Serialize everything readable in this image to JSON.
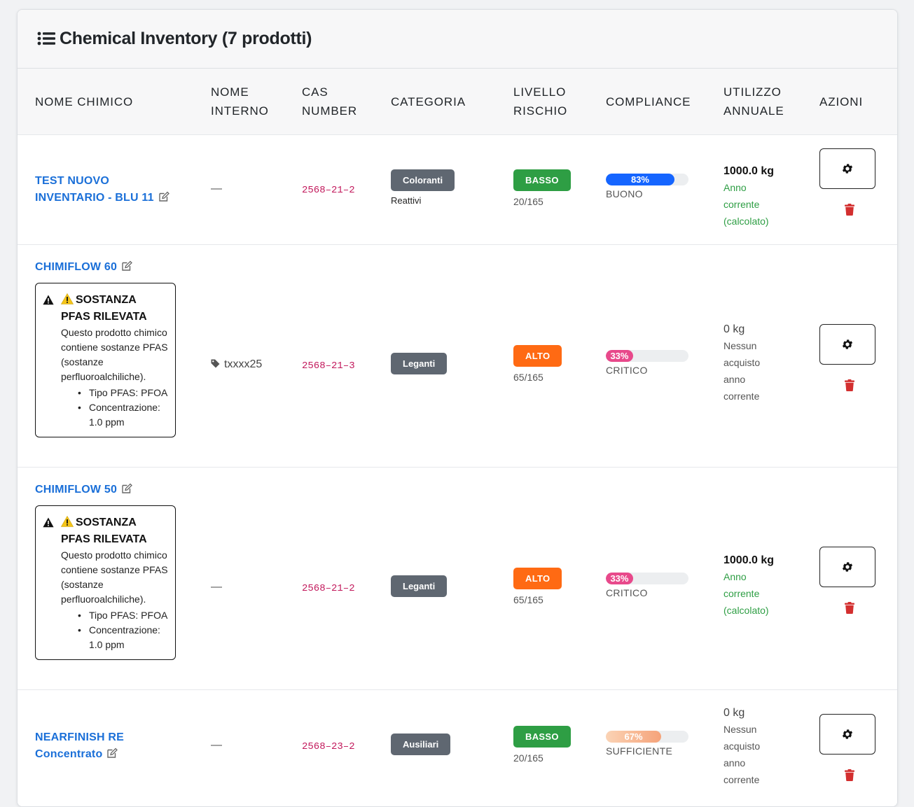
{
  "header": {
    "title": "Chemical Inventory (7 prodotti)",
    "icon": "list-icon"
  },
  "columns": {
    "nome_chimico": "NOME CHIMICO",
    "nome_interno_1": "NOME",
    "nome_interno_2": "INTERNO",
    "cas_1": "CAS",
    "cas_2": "NUMBER",
    "categoria": "CATEGORIA",
    "livello_1": "LIVELLO",
    "livello_2": "RISCHIO",
    "compliance": "COMPLIANCE",
    "utilizzo_1": "UTILIZZO",
    "utilizzo_2": "ANNUALE",
    "azioni": "AZIONI"
  },
  "colors": {
    "link": "#1a6fd8",
    "risk_low": "#2e9e44",
    "risk_high": "#ff6a13",
    "compliance_good": "#1565ff",
    "compliance_critical": "#e8498b",
    "compliance_sufficient": "#f5a37a",
    "cas": "#c2185b",
    "trash": "#d32f2f"
  },
  "pfas_alert": {
    "heading_1": "SOSTANZA",
    "heading_2": "PFAS RILEVATA",
    "text": "Questo prodotto chimico contiene sostanze PFAS (sostanze perfluoroalchiliche).",
    "item_type": "Tipo PFAS: PFOA",
    "item_conc_1": "Concentrazione:",
    "item_conc_2": "1.0 ppm"
  },
  "rows": [
    {
      "name_1": "TEST NUOVO",
      "name_2": "INVENTARIO - BLU 11",
      "internal": "—",
      "cas": "2568–21–2",
      "category": "Coloranti",
      "subcategory": "Reattivi",
      "risk": "BASSO",
      "risk_score": "20/165",
      "compliance_pct": 83,
      "compliance_text": "83%",
      "compliance_label": "BUONO",
      "usage_qty": "1000.0 kg",
      "usage_1": "Anno",
      "usage_2": "corrente",
      "usage_3": "(calcolato)"
    },
    {
      "name_1": "CHIMIFLOW 60",
      "internal": "txxxx25",
      "cas": "2568–21–3",
      "category": "Leganti",
      "risk": "ALTO",
      "risk_score": "65/165",
      "compliance_pct": 33,
      "compliance_text": "33%",
      "compliance_label": "CRITICO",
      "usage_qty": "0 kg",
      "usage_1": "Nessun",
      "usage_2": "acquisto",
      "usage_3": "anno",
      "usage_4": "corrente"
    },
    {
      "name_1": "CHIMIFLOW 50",
      "internal": "—",
      "cas": "2568–21–2",
      "category": "Leganti",
      "risk": "ALTO",
      "risk_score": "65/165",
      "compliance_pct": 33,
      "compliance_text": "33%",
      "compliance_label": "CRITICO",
      "usage_qty": "1000.0 kg",
      "usage_1": "Anno",
      "usage_2": "corrente",
      "usage_3": "(calcolato)"
    },
    {
      "name_1": "NEARFINISH RE",
      "name_2": "Concentrato",
      "internal": "—",
      "cas": "2568–23–2",
      "category": "Ausiliari",
      "risk": "BASSO",
      "risk_score": "20/165",
      "compliance_pct": 67,
      "compliance_text": "67%",
      "compliance_label": "SUFFICIENTE",
      "usage_qty": "0 kg",
      "usage_1": "Nessun",
      "usage_2": "acquisto",
      "usage_3": "anno",
      "usage_4": "corrente"
    }
  ]
}
